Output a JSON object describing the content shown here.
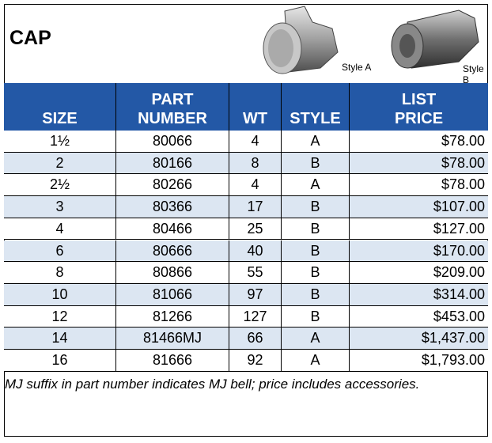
{
  "header": {
    "title": "CAP",
    "style_a_label": "Style A",
    "style_b_label": "Style B"
  },
  "table": {
    "columns": [
      [
        "SIZE"
      ],
      [
        "PART",
        "NUMBER"
      ],
      [
        "WT"
      ],
      [
        "STYLE"
      ],
      [
        "LIST",
        "PRICE"
      ]
    ],
    "rows": [
      [
        "1½",
        "80066",
        "4",
        "A",
        "$78.00"
      ],
      [
        "2",
        "80166",
        "8",
        "B",
        "$78.00"
      ],
      [
        "2½",
        "80266",
        "4",
        "A",
        "$78.00"
      ],
      [
        "3",
        "80366",
        "17",
        "B",
        "$107.00"
      ],
      [
        "4",
        "80466",
        "25",
        "B",
        "$127.00"
      ],
      [
        "6",
        "80666",
        "40",
        "B",
        "$170.00"
      ],
      [
        "8",
        "80866",
        "55",
        "B",
        "$209.00"
      ],
      [
        "10",
        "81066",
        "97",
        "B",
        "$314.00"
      ],
      [
        "12",
        "81266",
        "127",
        "B",
        "$453.00"
      ],
      [
        "14",
        "81466MJ",
        "66",
        "A",
        "$1,437.00"
      ],
      [
        "16",
        "81666",
        "92",
        "A",
        "$1,793.00"
      ]
    ]
  },
  "footnote": "MJ suffix in part number indicates MJ bell; price includes accessories."
}
